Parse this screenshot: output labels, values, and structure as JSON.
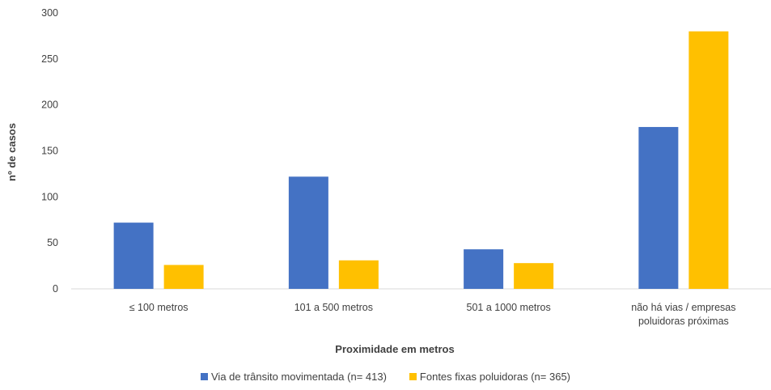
{
  "chart_data": {
    "type": "bar",
    "categories": [
      "≤ 100 metros",
      "101 a 500 metros",
      "501 a 1000 metros",
      "não há vias / empresas poluidoras próximas"
    ],
    "category_lines": [
      [
        "≤ 100 metros"
      ],
      [
        "101 a 500 metros"
      ],
      [
        "501 a 1000 metros"
      ],
      [
        "não há vias / empresas",
        "poluidoras próximas"
      ]
    ],
    "series": [
      {
        "name": "Via de trânsito movimentada (n= 413)",
        "values": [
          72,
          122,
          43,
          176
        ],
        "color": "#4472C4"
      },
      {
        "name": "Fontes fixas poluidoras (n= 365)",
        "values": [
          26,
          31,
          28,
          280
        ],
        "color": "#FFC000"
      }
    ],
    "xlabel": "Proximidade em metros",
    "ylabel": "nº de casos",
    "ylim": [
      0,
      300
    ],
    "yticks": [
      0,
      50,
      100,
      150,
      200,
      250,
      300
    ],
    "grid": false,
    "legend_position": "bottom"
  }
}
